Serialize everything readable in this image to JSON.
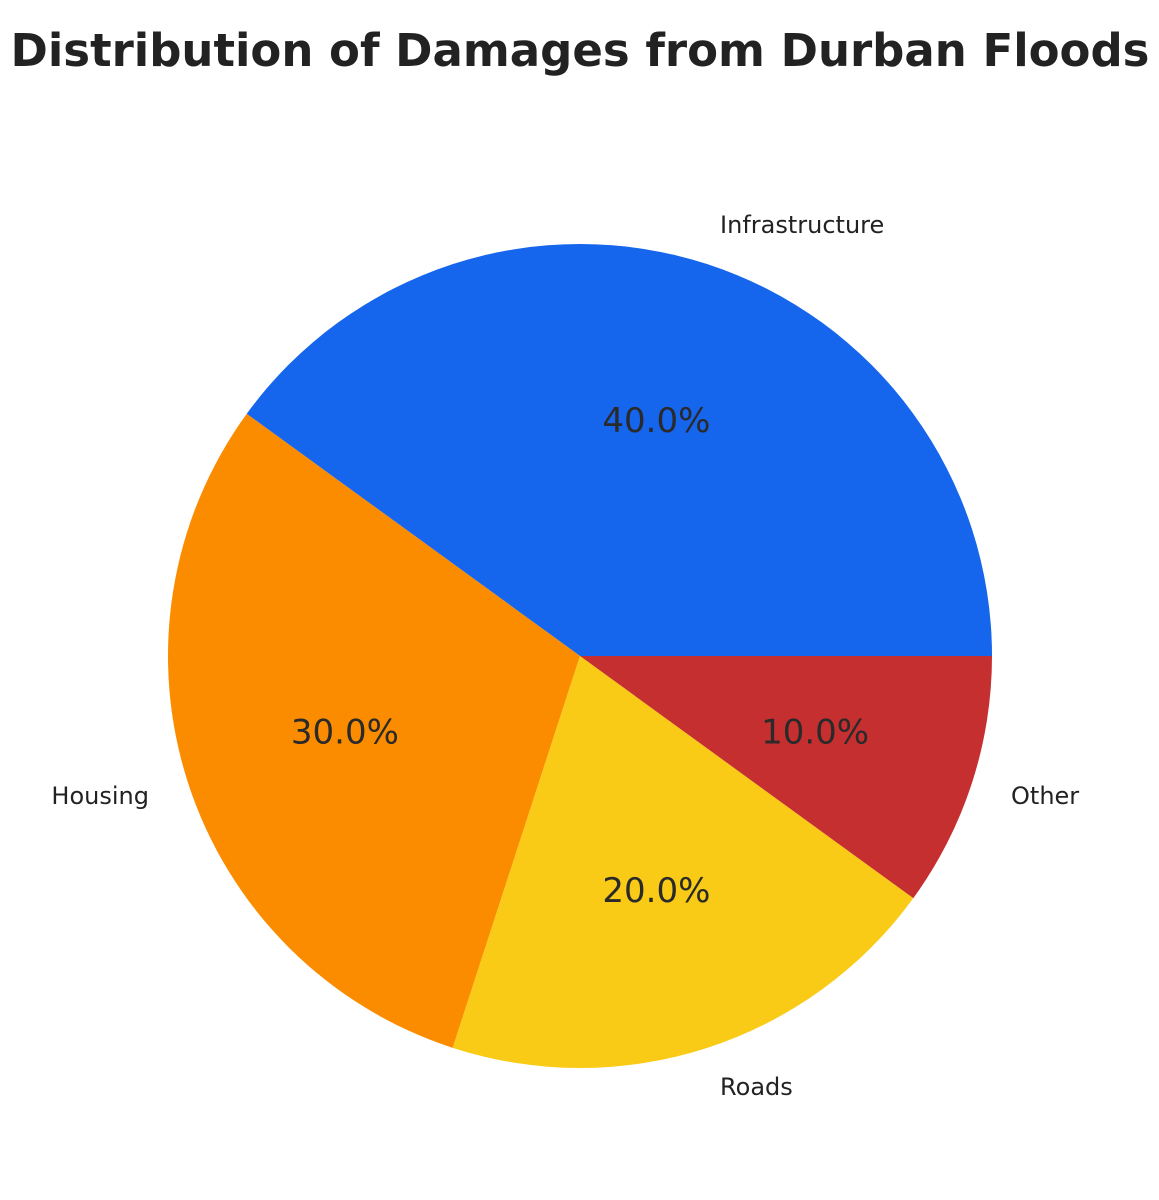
{
  "chart_data": {
    "type": "pie",
    "title": "Distribution of Damages from Durban Floods",
    "categories": [
      "Infrastructure",
      "Housing",
      "Roads",
      "Other"
    ],
    "values": [
      40.0,
      30.0,
      20.0,
      10.0
    ],
    "percent_labels": [
      "40.0%",
      "30.0%",
      "20.0%",
      "10.0%"
    ],
    "colors": [
      "#1565ED",
      "#FB8C00",
      "#F9CB17",
      "#C62F2F"
    ],
    "start_angle_deg": 0,
    "direction": "counterclockwise",
    "legend": "none"
  }
}
